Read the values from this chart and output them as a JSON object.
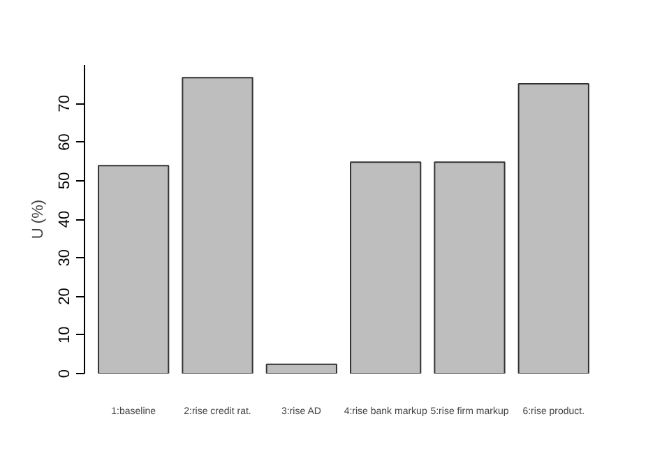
{
  "chart_data": {
    "type": "bar",
    "ylabel": "U (%)",
    "categories": [
      "1:baseline",
      "2:rise credit rat.",
      "3:rise AD",
      "4:rise bank markup",
      "5:rise firm markup",
      "6:rise product."
    ],
    "values": [
      53.9,
      76.7,
      2.4,
      54.8,
      54.8,
      75.1
    ],
    "color": "#bebebe",
    "ylim": [
      0,
      80
    ],
    "yticks": [
      0,
      10,
      20,
      30,
      40,
      50,
      60,
      70
    ],
    "grid": false
  }
}
